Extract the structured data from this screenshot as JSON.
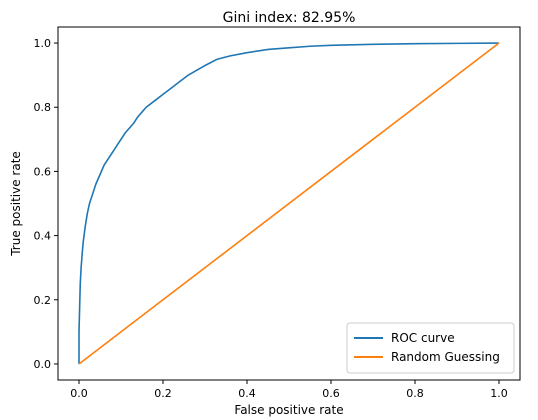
{
  "chart_data": {
    "type": "line",
    "title": "Gini index: 82.95%",
    "xlabel": "False positive rate",
    "ylabel": "True positive rate",
    "xlim": [
      -0.05,
      1.05
    ],
    "ylim": [
      -0.05,
      1.05
    ],
    "xticks": [
      0.0,
      0.2,
      0.4,
      0.6,
      0.8,
      1.0
    ],
    "yticks": [
      0.0,
      0.2,
      0.4,
      0.6,
      0.8,
      1.0
    ],
    "tick_labels": [
      "0.0",
      "0.2",
      "0.4",
      "0.6",
      "0.8",
      "1.0"
    ],
    "grid": false,
    "legend_position": "bottom-right",
    "series": [
      {
        "name": "ROC curve",
        "color": "#1f77b4",
        "x": [
          0.0,
          0.0,
          0.002,
          0.003,
          0.005,
          0.008,
          0.01,
          0.015,
          0.02,
          0.025,
          0.03,
          0.04,
          0.05,
          0.06,
          0.07,
          0.08,
          0.09,
          0.1,
          0.11,
          0.12,
          0.13,
          0.14,
          0.15,
          0.16,
          0.18,
          0.2,
          0.22,
          0.24,
          0.26,
          0.28,
          0.3,
          0.33,
          0.36,
          0.4,
          0.45,
          0.5,
          0.55,
          0.6,
          0.7,
          0.8,
          0.9,
          1.0
        ],
        "y": [
          0.0,
          0.1,
          0.2,
          0.25,
          0.3,
          0.35,
          0.38,
          0.43,
          0.47,
          0.5,
          0.52,
          0.56,
          0.59,
          0.62,
          0.64,
          0.66,
          0.68,
          0.7,
          0.72,
          0.735,
          0.75,
          0.77,
          0.785,
          0.8,
          0.82,
          0.84,
          0.86,
          0.88,
          0.9,
          0.915,
          0.93,
          0.95,
          0.96,
          0.97,
          0.98,
          0.985,
          0.99,
          0.993,
          0.996,
          0.998,
          0.999,
          1.0
        ]
      },
      {
        "name": "Random Guessing",
        "color": "#ff7f0e",
        "x": [
          0.0,
          1.0
        ],
        "y": [
          0.0,
          1.0
        ]
      }
    ]
  }
}
